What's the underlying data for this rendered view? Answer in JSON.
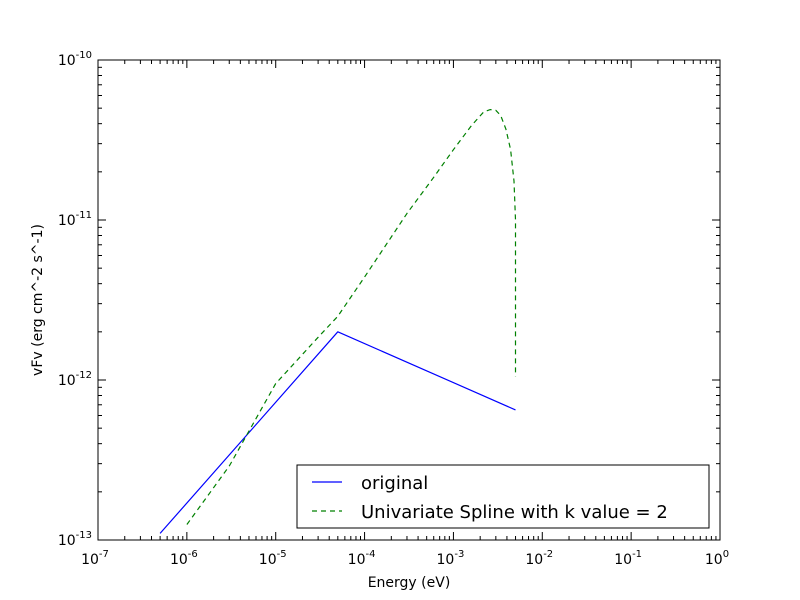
{
  "chart_data": {
    "type": "line",
    "xlabel": "Energy (eV)",
    "ylabel": "vFv (erg cm^-2 s^-1)",
    "xscale": "log",
    "yscale": "log",
    "xlim": [
      1e-07,
      1
    ],
    "ylim": [
      1e-13,
      1e-10
    ],
    "x_ticks": [
      {
        "value": 1e-07,
        "base": "10",
        "exp": "-7"
      },
      {
        "value": 1e-06,
        "base": "10",
        "exp": "-6"
      },
      {
        "value": 1e-05,
        "base": "10",
        "exp": "-5"
      },
      {
        "value": 0.0001,
        "base": "10",
        "exp": "-4"
      },
      {
        "value": 0.001,
        "base": "10",
        "exp": "-3"
      },
      {
        "value": 0.01,
        "base": "10",
        "exp": "-2"
      },
      {
        "value": 0.1,
        "base": "10",
        "exp": "-1"
      },
      {
        "value": 1,
        "base": "10",
        "exp": "0"
      }
    ],
    "y_ticks": [
      {
        "value": 1e-13,
        "base": "10",
        "exp": "-13"
      },
      {
        "value": 1e-12,
        "base": "10",
        "exp": "-12"
      },
      {
        "value": 1e-11,
        "base": "10",
        "exp": "-11"
      },
      {
        "value": 1e-10,
        "base": "10",
        "exp": "-10"
      }
    ],
    "grid": false,
    "legend_position": "lower-right",
    "series": [
      {
        "name": "original",
        "color": "#0000ff",
        "style": "solid",
        "x": [
          5e-07,
          5e-05,
          0.005
        ],
        "y": [
          1.1e-13,
          2e-12,
          6.5e-13
        ]
      },
      {
        "name": "Univariate Spline with k value = 2",
        "color": "#008000",
        "style": "dashed",
        "x": [
          1e-06,
          3e-06,
          1e-05,
          3e-05,
          5e-05,
          0.0001,
          0.0003,
          0.0006,
          0.001,
          0.0016,
          0.0022,
          0.0026,
          0.003,
          0.0034,
          0.0039,
          0.0044,
          0.0048,
          0.005,
          0.005,
          0.005
        ],
        "y": [
          1.25e-13,
          2.9e-13,
          9.5e-13,
          1.85e-12,
          2.5e-12,
          4.4e-12,
          1.1e-11,
          1.85e-11,
          2.75e-11,
          3.9e-11,
          4.75e-11,
          4.9e-11,
          4.85e-11,
          4.5e-11,
          3.7e-11,
          2.75e-11,
          1.75e-11,
          1e-11,
          4e-12,
          1.05e-12
        ]
      }
    ]
  }
}
